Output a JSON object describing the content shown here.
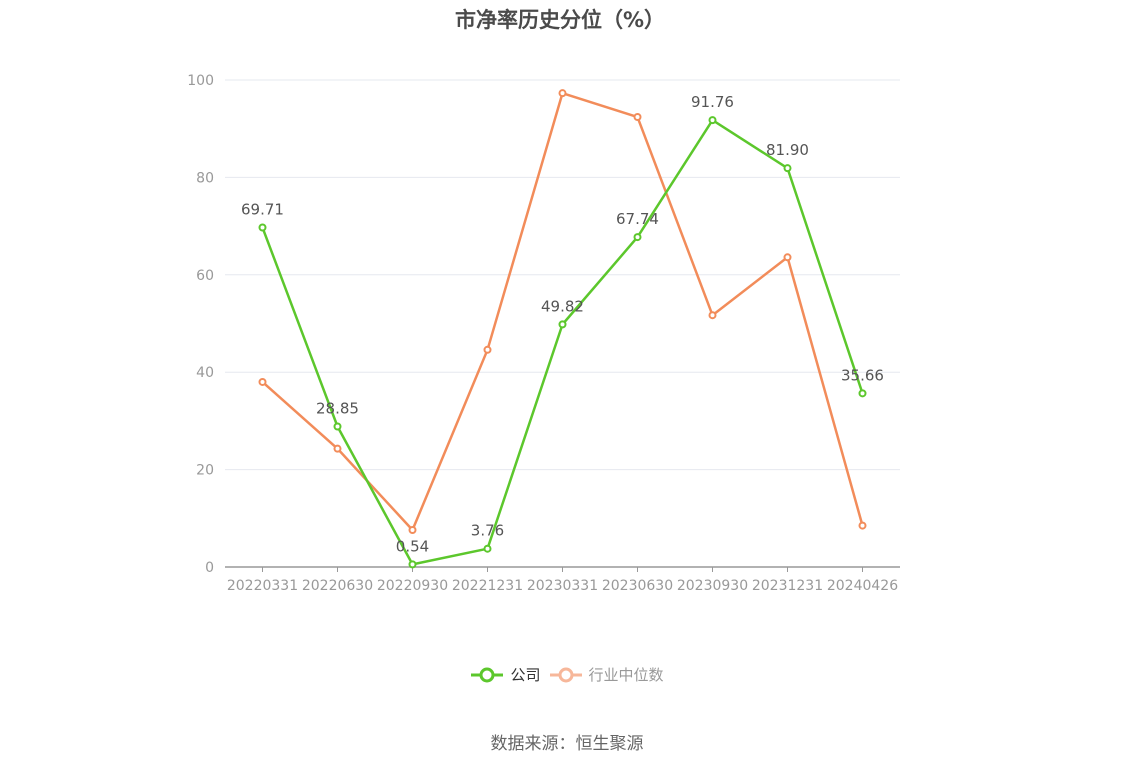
{
  "chart_data": {
    "type": "line",
    "title": "市净率历史分位（%）",
    "categories": [
      "20220331",
      "20220630",
      "20220930",
      "20221231",
      "20230331",
      "20230630",
      "20230930",
      "20231231",
      "20240426"
    ],
    "ylim": [
      0,
      100
    ],
    "yticks": [
      0,
      20,
      40,
      60,
      80,
      100
    ],
    "grid": true,
    "legend_position": "bottom",
    "series": [
      {
        "name": "公司",
        "color": "#5cc72c",
        "values": [
          69.71,
          28.85,
          0.54,
          3.76,
          49.82,
          67.74,
          91.76,
          81.9,
          35.66
        ],
        "labels": [
          "69.71",
          "28.85",
          "0.54",
          "3.76",
          "49.82",
          "67.74",
          "91.76",
          "81.90",
          "35.66"
        ]
      },
      {
        "name": "行业中位数",
        "color": "#f28c5a",
        "values": [
          38.0,
          24.3,
          7.6,
          44.6,
          97.3,
          92.4,
          51.7,
          63.6,
          8.5
        ]
      }
    ]
  },
  "legend": {
    "company": "公司",
    "industry": "行业中位数"
  },
  "source": "数据来源：恒生聚源"
}
